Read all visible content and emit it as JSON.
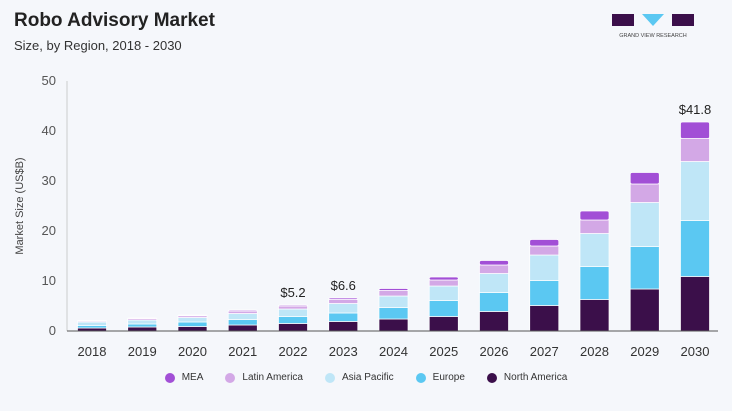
{
  "header": {
    "title": "Robo Advisory Market",
    "subtitle": "Size, by Region, 2018 - 2030",
    "logo_text": "GRAND VIEW RESEARCH"
  },
  "chart_data": {
    "type": "bar",
    "stacked": true,
    "title": "Robo Advisory Market",
    "subtitle": "Size, by Region, 2018 - 2030",
    "xlabel": "",
    "ylabel": "Market Size (US$B)",
    "ylim": [
      0,
      50
    ],
    "yticks": [
      0,
      10,
      20,
      30,
      40,
      50
    ],
    "grid": false,
    "legend_position": "bottom",
    "categories": [
      "2018",
      "2019",
      "2020",
      "2021",
      "2022",
      "2023",
      "2024",
      "2025",
      "2026",
      "2027",
      "2028",
      "2029",
      "2030"
    ],
    "series": [
      {
        "name": "North America",
        "color": "#3b0f4a",
        "values": [
          0.6,
          0.8,
          0.9,
          1.2,
          1.5,
          1.9,
          2.4,
          2.9,
          3.9,
          5.1,
          6.3,
          8.4,
          10.9
        ]
      },
      {
        "name": "Europe",
        "color": "#5bc8f2",
        "values": [
          0.5,
          0.6,
          0.9,
          1.1,
          1.4,
          1.7,
          2.3,
          3.2,
          3.8,
          5.0,
          6.6,
          8.5,
          11.2
        ]
      },
      {
        "name": "Asia Pacific",
        "color": "#bfe6f7",
        "values": [
          0.7,
          0.8,
          0.9,
          1.2,
          1.5,
          1.9,
          2.3,
          2.9,
          3.8,
          5.1,
          6.6,
          8.8,
          11.8
        ]
      },
      {
        "name": "Latin America",
        "color": "#d3a8e6",
        "values": [
          0.2,
          0.3,
          0.35,
          0.5,
          0.6,
          0.8,
          1.1,
          1.2,
          1.7,
          1.8,
          2.7,
          3.7,
          4.6
        ]
      },
      {
        "name": "MEA",
        "color": "#a24fd6",
        "values": [
          0.1,
          0.1,
          0.15,
          0.2,
          0.2,
          0.3,
          0.4,
          0.6,
          0.9,
          1.3,
          1.8,
          2.3,
          3.3
        ]
      }
    ],
    "annotations": [
      {
        "category": "2022",
        "text": "$5.2"
      },
      {
        "category": "2023",
        "text": "$6.6"
      },
      {
        "category": "2030",
        "text": "$41.8"
      }
    ],
    "legend_order": [
      "MEA",
      "Latin America",
      "Asia Pacific",
      "Europe",
      "North America"
    ]
  }
}
